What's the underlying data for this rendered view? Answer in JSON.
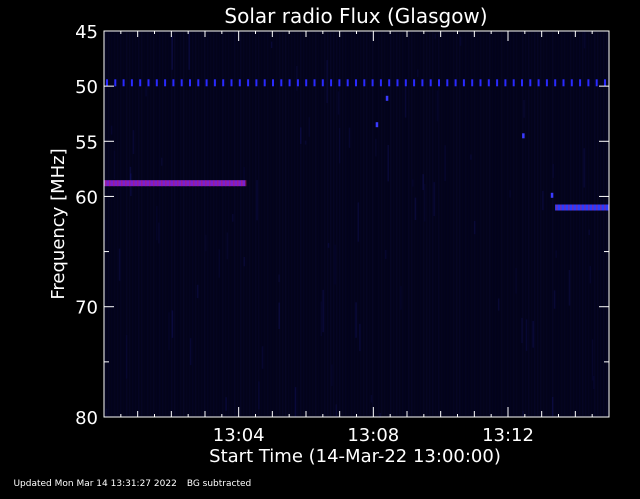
{
  "chart_data": {
    "type": "heatmap",
    "title": "Solar radio Flux (Glasgow)",
    "xlabel": "Start Time (14-Mar-22 13:00:00)",
    "ylabel": "Frequency [MHz]",
    "y_reversed": true,
    "ylim": [
      45,
      80
    ],
    "y_ticks": [
      45,
      50,
      55,
      60,
      70,
      80
    ],
    "xlim_minutes": [
      0,
      15
    ],
    "x_ticks": [
      {
        "minute": 4,
        "label": "13:04"
      },
      {
        "minute": 8,
        "label": "13:08"
      },
      {
        "minute": 12,
        "label": "13:12"
      }
    ],
    "background_color": "#03031a",
    "signals": [
      {
        "freq_mhz": 49.7,
        "start_min": 0.0,
        "end_min": 15.0,
        "style": "dotted",
        "color": "#2a2aff"
      },
      {
        "freq_mhz": 58.8,
        "start_min": 0.0,
        "end_min": 4.2,
        "style": "solid",
        "color": "#7a1fd0"
      },
      {
        "freq_mhz": 61.0,
        "start_min": 13.4,
        "end_min": 15.0,
        "style": "solid",
        "color": "#2a3cff"
      }
    ],
    "spots": [
      {
        "minute": 8.4,
        "freq_mhz": 51.1,
        "color": "#3a3aff"
      },
      {
        "minute": 8.1,
        "freq_mhz": 53.5,
        "color": "#3a3aff"
      },
      {
        "minute": 12.45,
        "freq_mhz": 54.5,
        "color": "#3a3aff"
      },
      {
        "minute": 13.3,
        "freq_mhz": 59.9,
        "color": "#3a3aff"
      }
    ]
  },
  "footer": {
    "updated": "Updated Mon Mar 14 13:31:27 2022",
    "bg_note": "BG subtracted"
  }
}
